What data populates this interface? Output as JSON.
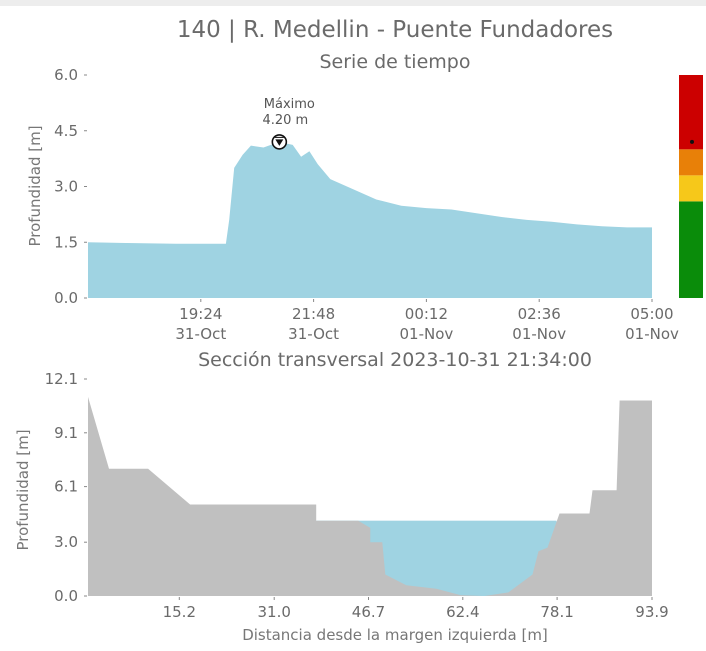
{
  "figure_title": "140 | R. Medellin - Puente Fundadores",
  "colors": {
    "water": "#9fd3e2",
    "terrain": "#c0c0c0",
    "alert_red": "#cc0000",
    "alert_orange": "#e88008",
    "alert_yellow": "#f6c81a",
    "alert_green": "#0a8c0a"
  },
  "chart_data": [
    {
      "type": "area",
      "title": "Serie de tiempo",
      "xlabel": "",
      "ylabel": "Profundidad [m]",
      "ylim": [
        0,
        6
      ],
      "y_ticks": [
        "0.0",
        "1.5",
        "3.0",
        "4.5",
        "6.0"
      ],
      "x_ticks": [
        {
          "time": "19:24",
          "date": "31-Oct"
        },
        {
          "time": "21:48",
          "date": "31-Oct"
        },
        {
          "time": "00:12",
          "date": "01-Nov"
        },
        {
          "time": "02:36",
          "date": "01-Nov"
        },
        {
          "time": "05:00",
          "date": "01-Nov"
        }
      ],
      "x_range": [
        "2023-10-31 17:45",
        "2023-11-01 05:00"
      ],
      "series": [
        {
          "values": [
            {
              "t": "2023-10-31 17:45",
              "y": 1.5
            },
            {
              "t": "2023-10-31 18:30",
              "y": 1.48
            },
            {
              "t": "2023-10-31 19:30",
              "y": 1.46
            },
            {
              "t": "2023-10-31 20:30",
              "y": 1.46
            },
            {
              "t": "2023-10-31 20:34",
              "y": 2.1
            },
            {
              "t": "2023-10-31 20:40",
              "y": 3.5
            },
            {
              "t": "2023-10-31 20:50",
              "y": 3.85
            },
            {
              "t": "2023-10-31 21:00",
              "y": 4.1
            },
            {
              "t": "2023-10-31 21:15",
              "y": 4.05
            },
            {
              "t": "2023-10-31 21:34",
              "y": 4.2
            },
            {
              "t": "2023-10-31 21:50",
              "y": 4.12
            },
            {
              "t": "2023-10-31 22:00",
              "y": 3.8
            },
            {
              "t": "2023-10-31 22:10",
              "y": 3.95
            },
            {
              "t": "2023-10-31 22:20",
              "y": 3.6
            },
            {
              "t": "2023-10-31 22:35",
              "y": 3.2
            },
            {
              "t": "2023-10-31 23:00",
              "y": 2.95
            },
            {
              "t": "2023-10-31 23:30",
              "y": 2.65
            },
            {
              "t": "2023-11-01 00:00",
              "y": 2.48
            },
            {
              "t": "2023-11-01 00:30",
              "y": 2.42
            },
            {
              "t": "2023-11-01 01:00",
              "y": 2.38
            },
            {
              "t": "2023-11-01 01:30",
              "y": 2.28
            },
            {
              "t": "2023-11-01 02:00",
              "y": 2.18
            },
            {
              "t": "2023-11-01 02:30",
              "y": 2.1
            },
            {
              "t": "2023-11-01 03:00",
              "y": 2.05
            },
            {
              "t": "2023-11-01 03:30",
              "y": 1.98
            },
            {
              "t": "2023-11-01 04:00",
              "y": 1.93
            },
            {
              "t": "2023-11-01 04:30",
              "y": 1.9
            },
            {
              "t": "2023-11-01 05:00",
              "y": 1.9
            }
          ]
        }
      ],
      "annotation": {
        "label": "Máximo",
        "value_text": "4.20 m",
        "t": "2023-10-31 21:34",
        "y": 4.2
      },
      "alert_bar": {
        "ylim": [
          0,
          6
        ],
        "levels": [
          {
            "from": 0,
            "to": 2.6,
            "color": "#0a8c0a"
          },
          {
            "from": 2.6,
            "to": 3.3,
            "color": "#f6c81a"
          },
          {
            "from": 3.3,
            "to": 4.0,
            "color": "#e88008"
          },
          {
            "from": 4.0,
            "to": 6.0,
            "color": "#cc0000"
          }
        ],
        "marker_y": 4.2
      }
    },
    {
      "type": "area",
      "title": "Sección transversal 2023-10-31 21:34:00",
      "xlabel": "Distancia desde la margen izquierda [m]",
      "ylabel": "Profundidad [m]",
      "xlim": [
        0,
        93.9
      ],
      "ylim": [
        0,
        12.1
      ],
      "x_ticks": [
        "15.2",
        "31.0",
        "46.7",
        "62.4",
        "78.1",
        "93.9"
      ],
      "y_ticks": [
        "0.0",
        "3.0",
        "6.1",
        "9.1",
        "12.1"
      ],
      "water_level": 4.2,
      "water_range": [
        38,
        78
      ],
      "terrain": [
        {
          "x": 0,
          "y": 11.1
        },
        {
          "x": 3.5,
          "y": 7.1
        },
        {
          "x": 10,
          "y": 7.1
        },
        {
          "x": 17,
          "y": 5.1
        },
        {
          "x": 38,
          "y": 5.1
        },
        {
          "x": 38,
          "y": 4.2
        },
        {
          "x": 45,
          "y": 4.2
        },
        {
          "x": 47,
          "y": 3.8
        },
        {
          "x": 47,
          "y": 3.0
        },
        {
          "x": 49,
          "y": 3.0
        },
        {
          "x": 49.5,
          "y": 1.2
        },
        {
          "x": 53,
          "y": 0.6
        },
        {
          "x": 58,
          "y": 0.4
        },
        {
          "x": 62,
          "y": 0.05
        },
        {
          "x": 66,
          "y": 0.0
        },
        {
          "x": 70,
          "y": 0.2
        },
        {
          "x": 74,
          "y": 1.2
        },
        {
          "x": 75,
          "y": 2.5
        },
        {
          "x": 76.5,
          "y": 2.7
        },
        {
          "x": 78.5,
          "y": 4.6
        },
        {
          "x": 83.5,
          "y": 4.6
        },
        {
          "x": 84,
          "y": 5.9
        },
        {
          "x": 88,
          "y": 5.9
        },
        {
          "x": 88.5,
          "y": 10.9
        },
        {
          "x": 93.9,
          "y": 10.9
        }
      ]
    }
  ]
}
